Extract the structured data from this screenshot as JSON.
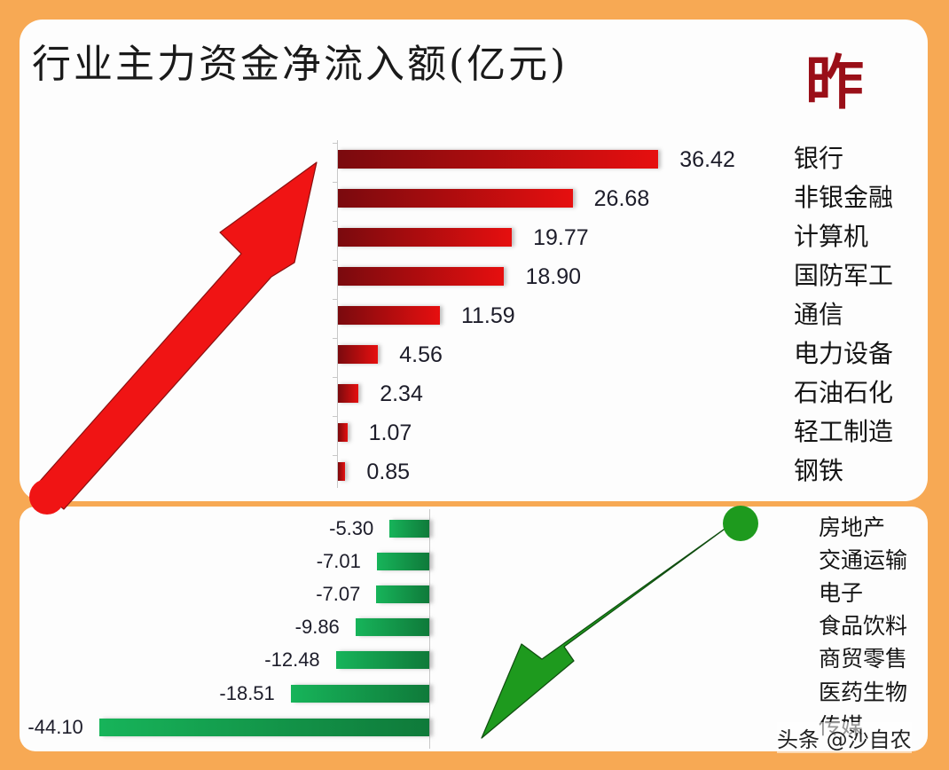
{
  "header": {
    "title": "行业主力资金净流入额(亿元)",
    "badge": "昨"
  },
  "watermark": "头条 @沙自农",
  "colors": {
    "background": "#f7a954",
    "panel": "#fdfdfd",
    "inflow_dark": "#7a0a0e",
    "inflow_light": "#e60f0f",
    "outflow_light": "#17b45a",
    "outflow_dark": "#0f7a3a",
    "up_arrow": "#f01414",
    "down_arrow": "#1e9a1e",
    "badge": "#9a0f18"
  },
  "inflow": [
    {
      "label": "银行",
      "value": 36.42,
      "display": "36.42"
    },
    {
      "label": "非银金融",
      "value": 26.68,
      "display": "26.68"
    },
    {
      "label": "计算机",
      "value": 19.77,
      "display": "19.77"
    },
    {
      "label": "国防军工",
      "value": 18.9,
      "display": "18.90"
    },
    {
      "label": "通信",
      "value": 11.59,
      "display": "11.59"
    },
    {
      "label": "电力设备",
      "value": 4.56,
      "display": "4.56"
    },
    {
      "label": "石油石化",
      "value": 2.34,
      "display": "2.34"
    },
    {
      "label": "轻工制造",
      "value": 1.07,
      "display": "1.07"
    },
    {
      "label": "钢铁",
      "value": 0.85,
      "display": "0.85"
    }
  ],
  "outflow": [
    {
      "label": "房地产",
      "value": -5.3,
      "display": "-5.30"
    },
    {
      "label": "交通运输",
      "value": -7.01,
      "display": "-7.01"
    },
    {
      "label": "电子",
      "value": -7.07,
      "display": "-7.07"
    },
    {
      "label": "食品饮料",
      "value": -9.86,
      "display": "-9.86"
    },
    {
      "label": "商贸零售",
      "value": -12.48,
      "display": "-12.48"
    },
    {
      "label": "医药生物",
      "value": -18.51,
      "display": "-18.51"
    },
    {
      "label": "传媒",
      "value": -44.1,
      "display": "-44.10"
    }
  ],
  "chart_data": [
    {
      "type": "bar",
      "orientation": "horizontal",
      "title": "行业主力资金净流入额(亿元)",
      "subtitle": "昨",
      "xlabel": "",
      "ylabel": "",
      "categories": [
        "银行",
        "非银金融",
        "计算机",
        "国防军工",
        "通信",
        "电力设备",
        "石油石化",
        "轻工制造",
        "钢铁"
      ],
      "values": [
        36.42,
        26.68,
        19.77,
        18.9,
        11.59,
        4.56,
        2.34,
        1.07,
        0.85
      ],
      "data_labels": true,
      "grid": false,
      "legend": "none",
      "category_label_position": "right",
      "annotation": "red up arrow"
    },
    {
      "type": "bar",
      "orientation": "horizontal",
      "title": "",
      "xlabel": "",
      "ylabel": "",
      "categories": [
        "房地产",
        "交通运输",
        "电子",
        "食品饮料",
        "商贸零售",
        "医药生物",
        "传媒"
      ],
      "values": [
        -5.3,
        -7.01,
        -7.07,
        -9.86,
        -12.48,
        -18.51,
        -44.1
      ],
      "data_labels": true,
      "grid": false,
      "legend": "none",
      "category_label_position": "right",
      "annotation": "green down arrow"
    }
  ]
}
